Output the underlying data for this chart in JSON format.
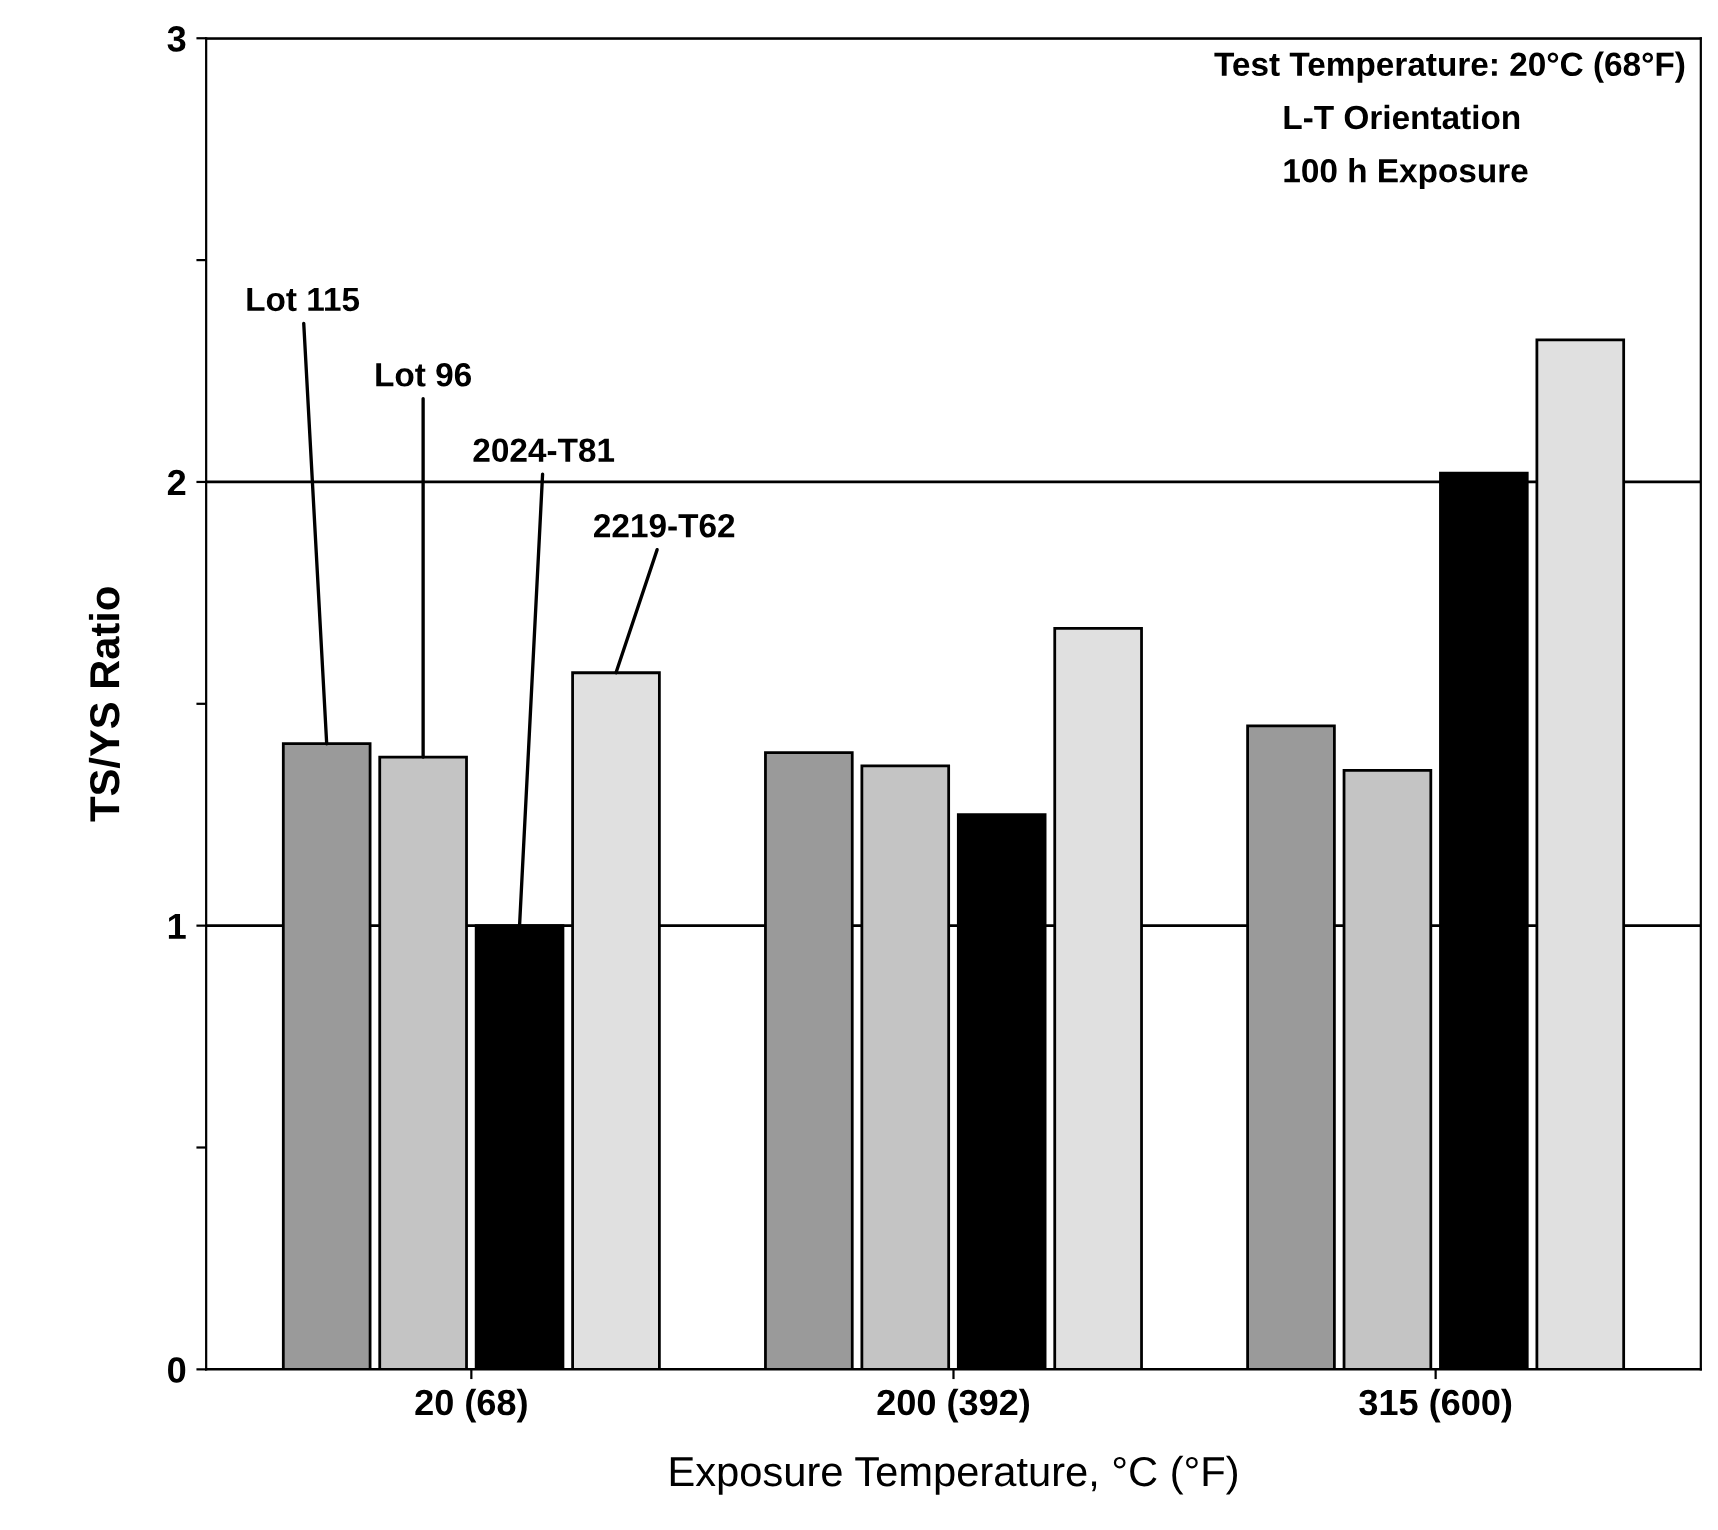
{
  "chart_data": {
    "type": "bar",
    "xlabel": "Exposure Temperature, °C (°F)",
    "ylabel": "TS/YS Ratio",
    "categories": [
      "20 (68)",
      "200 (392)",
      "315 (600)"
    ],
    "series": [
      {
        "name": "Lot 115",
        "color": "#9a9a9a",
        "values": [
          1.41,
          1.39,
          1.45
        ]
      },
      {
        "name": "Lot 96",
        "color": "#c4c4c4",
        "values": [
          1.38,
          1.36,
          1.35
        ]
      },
      {
        "name": "2024-T81",
        "color": "#000000",
        "values": [
          1.0,
          1.25,
          2.02
        ]
      },
      {
        "name": "2219-T62",
        "color": "#e0e0e0",
        "values": [
          1.57,
          1.67,
          2.32
        ]
      }
    ],
    "ylim": [
      0,
      3
    ],
    "yticks": [
      0,
      {
        "value": 0.5,
        "label": null
      },
      1,
      {
        "value": 1.5,
        "label": null
      },
      2,
      {
        "value": 2.5,
        "label": null
      },
      3
    ],
    "grid": "y",
    "annotations": [
      "Test Temperature: 20°C (68°F)",
      "L-T Orientation",
      "100 h Exposure"
    ]
  }
}
